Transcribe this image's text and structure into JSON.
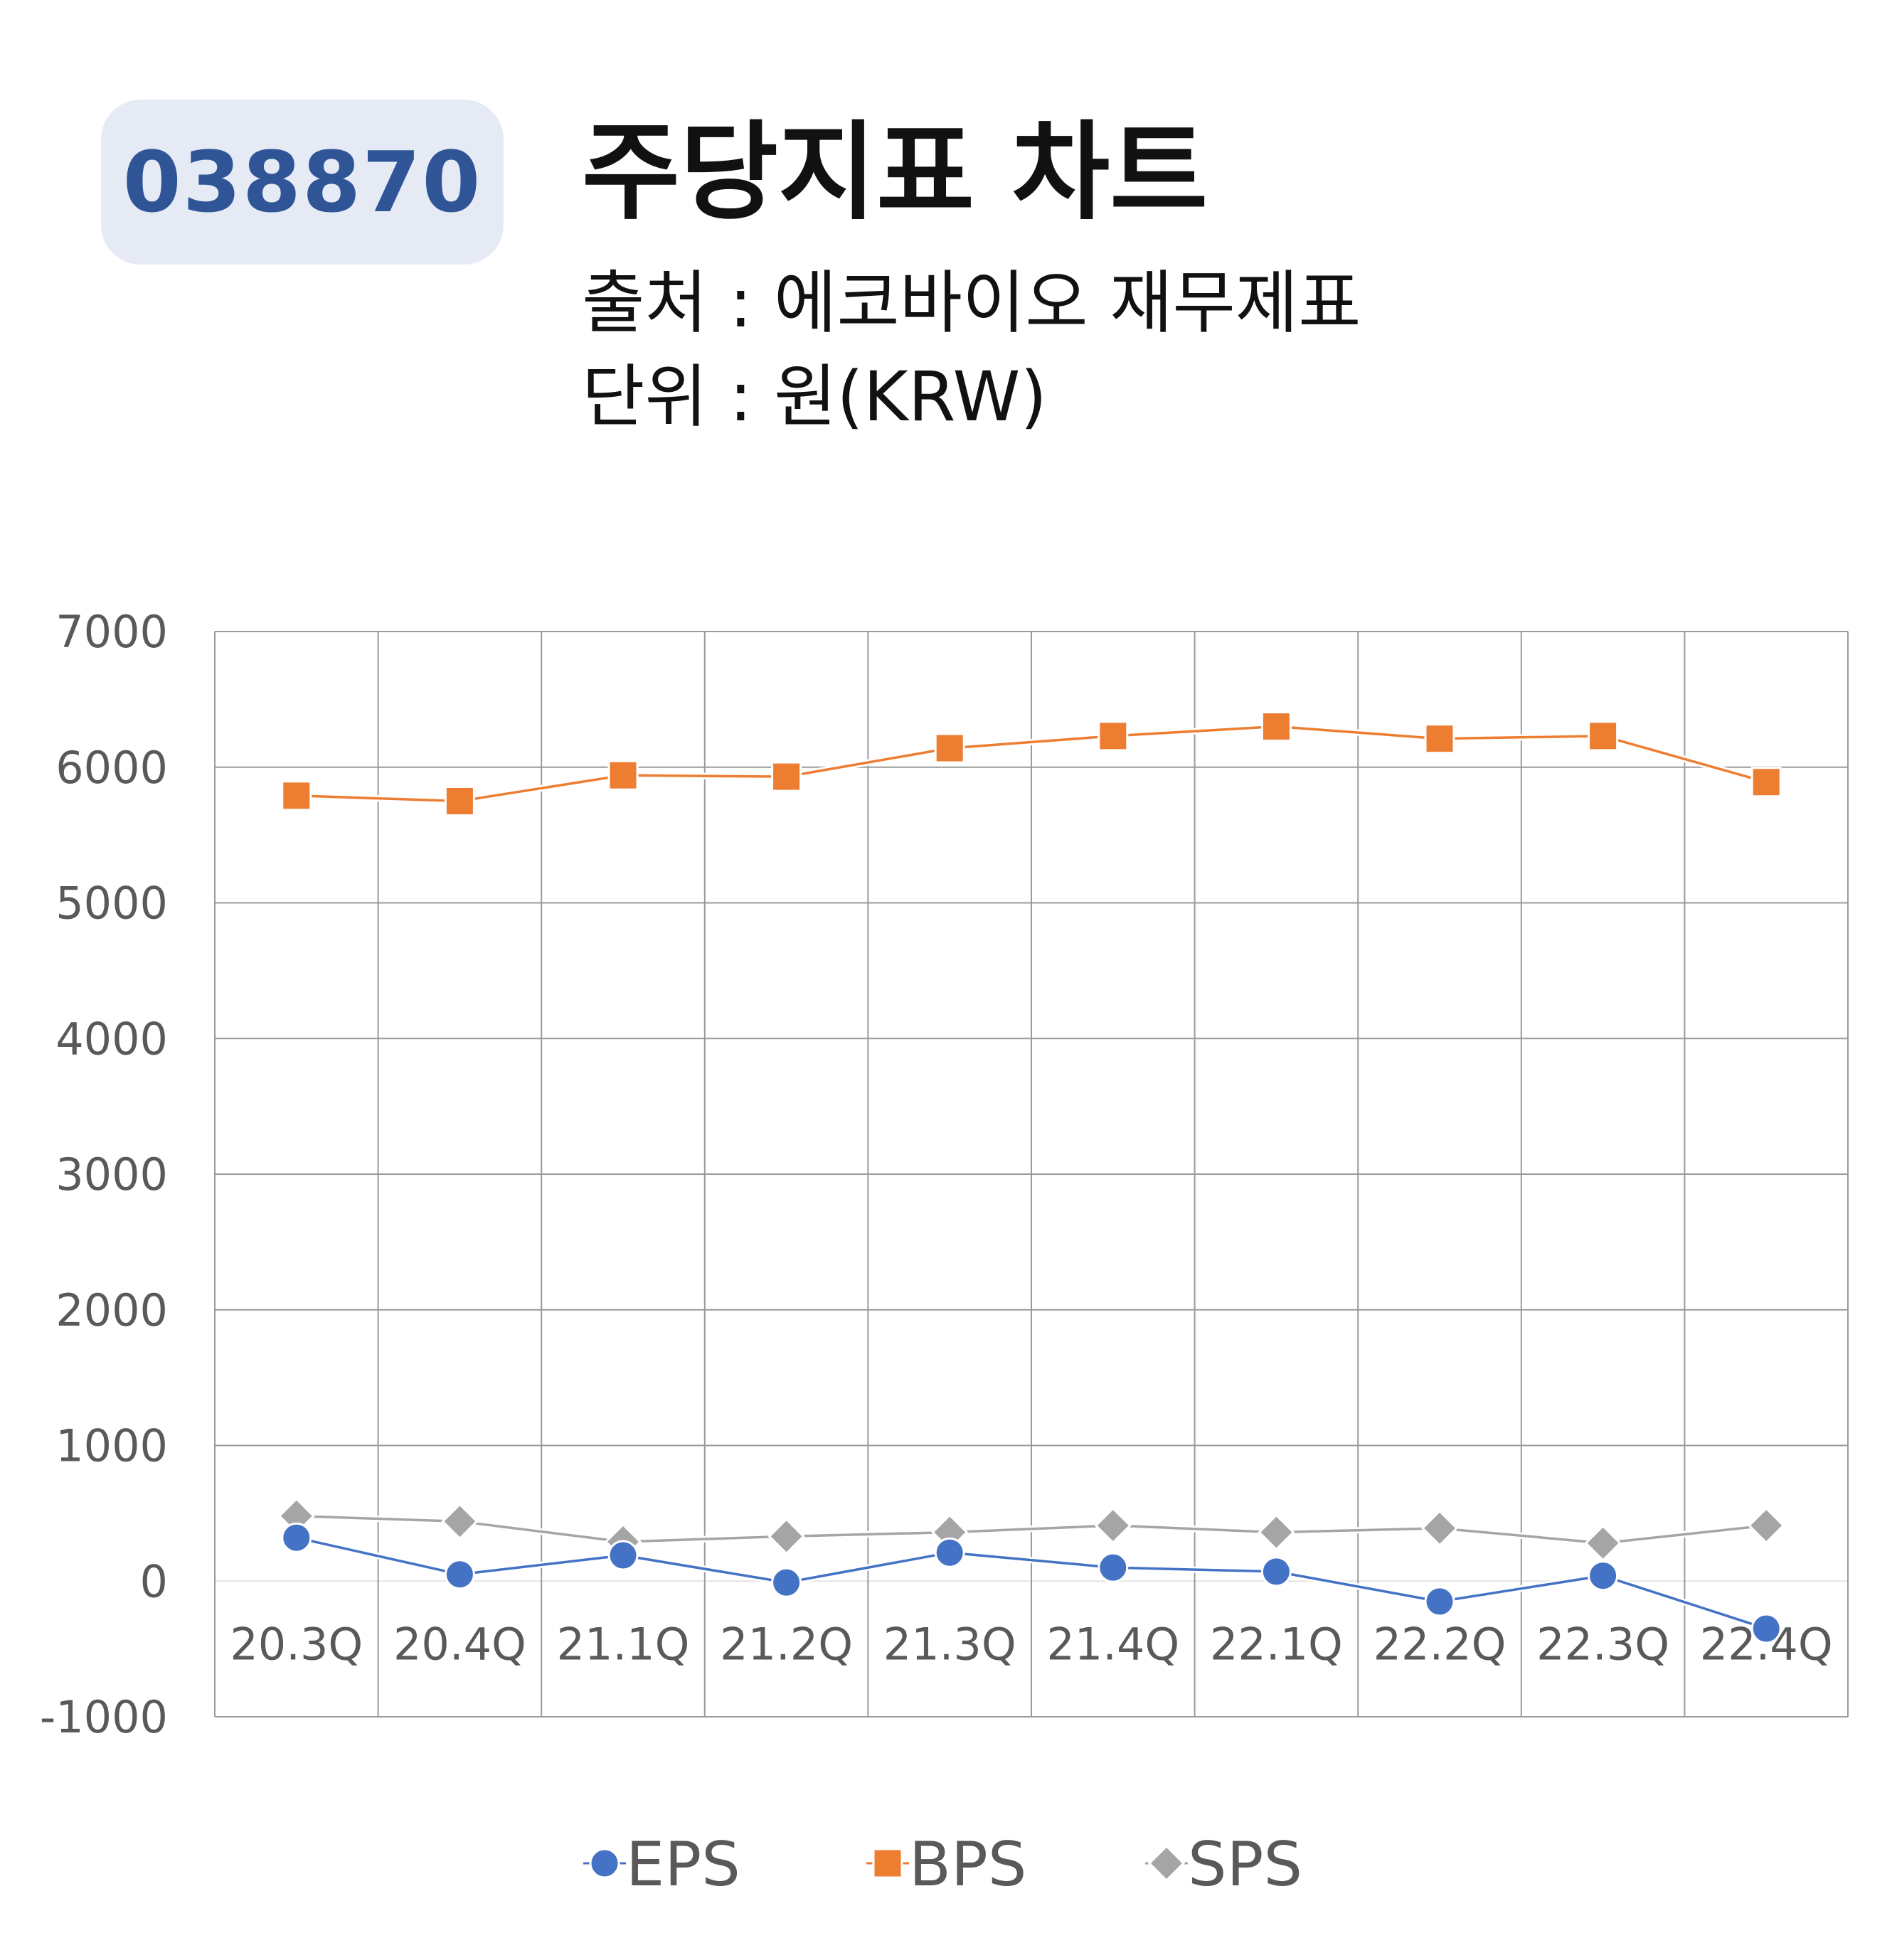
{
  "header": {
    "ticker": "038870",
    "title": "주당지표 차트",
    "source": "출처 : 에코바이오 재무제표",
    "unit": "단위 : 원(KRW)"
  },
  "chart_data": {
    "type": "line",
    "categories": [
      "20.3Q",
      "20.4Q",
      "21.1Q",
      "21.2Q",
      "21.3Q",
      "21.4Q",
      "22.1Q",
      "22.2Q",
      "22.3Q",
      "22.4Q"
    ],
    "series": [
      {
        "name": "EPS",
        "color": "#4472c4",
        "marker": "circle",
        "values": [
          320,
          50,
          190,
          -10,
          210,
          100,
          70,
          -150,
          40,
          -350
        ]
      },
      {
        "name": "BPS",
        "color": "#ed7d31",
        "marker": "square",
        "values": [
          5790,
          5750,
          5940,
          5930,
          6140,
          6230,
          6300,
          6210,
          6230,
          5890
        ]
      },
      {
        "name": "SPS",
        "color": "#a5a5a5",
        "marker": "diamond",
        "values": [
          480,
          440,
          290,
          330,
          360,
          410,
          360,
          390,
          280,
          410
        ]
      }
    ],
    "yticks": [
      7000,
      6000,
      5000,
      4000,
      3000,
      2000,
      1000,
      0,
      -1000
    ],
    "ylim": [
      -1000,
      7000
    ],
    "grid": true,
    "legend_position": "bottom"
  }
}
